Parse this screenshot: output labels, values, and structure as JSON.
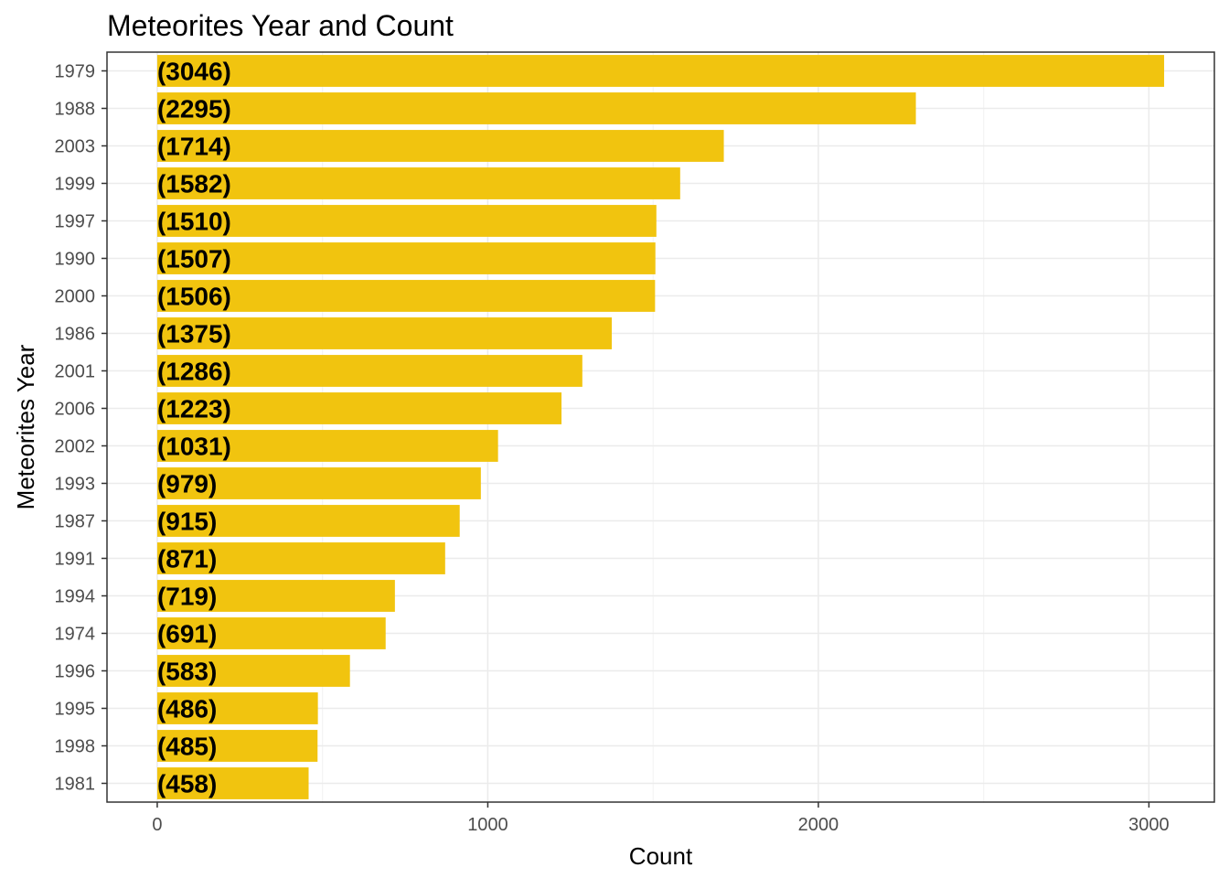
{
  "chart_data": {
    "type": "bar",
    "orientation": "horizontal",
    "title": "Meteorites Year and Count",
    "xlabel": "Count",
    "ylabel": "Meteorites Year",
    "categories": [
      "1979",
      "1988",
      "2003",
      "1999",
      "1997",
      "1990",
      "2000",
      "1986",
      "2001",
      "2006",
      "2002",
      "1993",
      "1987",
      "1991",
      "1994",
      "1974",
      "1996",
      "1995",
      "1998",
      "1981"
    ],
    "values": [
      3046,
      2295,
      1714,
      1582,
      1510,
      1507,
      1506,
      1375,
      1286,
      1223,
      1031,
      979,
      915,
      871,
      719,
      691,
      583,
      486,
      485,
      458
    ],
    "data_labels": [
      "(3046)",
      "(2295)",
      "(1714)",
      "(1582)",
      "(1510)",
      "(1507)",
      "(1506)",
      "(1375)",
      "(1286)",
      "(1223)",
      "(1031)",
      "(979)",
      "(915)",
      "(871)",
      "(719)",
      "(691)",
      "(583)",
      "(486)",
      "(485)",
      "(458)"
    ],
    "x_ticks": [
      0,
      1000,
      2000,
      3000
    ],
    "xlim": [
      -152,
      3198
    ],
    "bar_color": "#F1C40F",
    "grid": true,
    "legend": "none"
  }
}
